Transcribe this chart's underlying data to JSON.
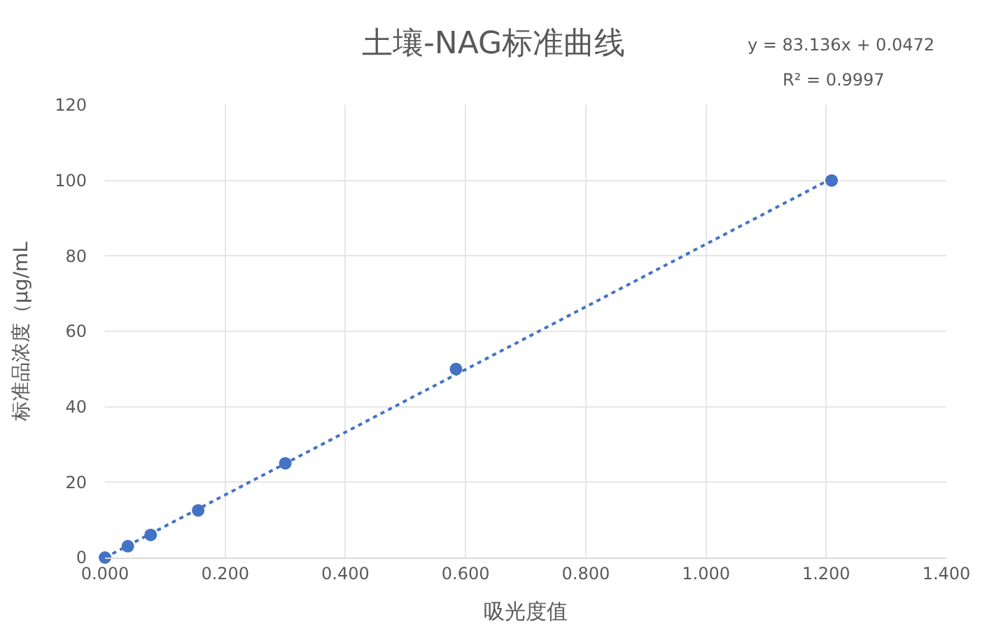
{
  "chart_data": {
    "type": "scatter",
    "title": "土壤-NAG标准曲线",
    "xlabel": "吸光度值",
    "ylabel": "标准品浓度（μg/mL",
    "series": [
      {
        "color": "#4472c4",
        "marker": "circle",
        "x": [
          0.0,
          0.038,
          0.076,
          0.155,
          0.3,
          0.584,
          1.209
        ],
        "values": [
          0,
          3,
          6,
          12.5,
          25,
          50,
          100
        ]
      },
      {
        "type": "line",
        "color": "#4472c4",
        "marker": "none",
        "line_style": "dotted",
        "x": [
          0.0,
          1.209
        ],
        "values": [
          0,
          100.5
        ]
      }
    ],
    "annotations": [
      "y = 83.136x + 0.0472",
      "R² = 0.9997"
    ],
    "xlim": [
      0,
      1.4
    ],
    "ylim": [
      0,
      120
    ],
    "xticks": [
      {
        "value": 0,
        "label": "0.000"
      },
      {
        "value": 0.2,
        "label": "0.200"
      },
      {
        "value": 0.4,
        "label": "0.400"
      },
      {
        "value": 0.6,
        "label": "0.600"
      },
      {
        "value": 0.8,
        "label": "0.800"
      },
      {
        "value": 1.0,
        "label": "1.000"
      },
      {
        "value": 1.2,
        "label": "1.200"
      },
      {
        "value": 1.4,
        "label": "1.400"
      }
    ],
    "yticks": [
      0,
      20,
      40,
      60,
      80,
      100,
      120
    ],
    "grid": true
  }
}
